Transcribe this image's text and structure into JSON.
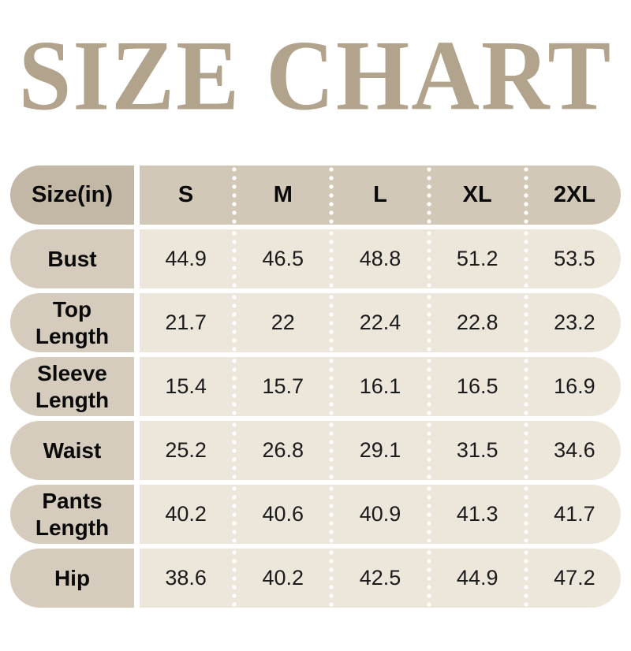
{
  "title": "SIZE CHART",
  "colors": {
    "background": "#ffffff",
    "title_text": "#b1a38c",
    "header_pill": "#c3b8a5",
    "header_strip": "#d2c8b8",
    "row_pill": "#d6ccbd",
    "row_strip": "#ece6db",
    "value_text": "#1b1b1b",
    "separator_dots": "#ffffff"
  },
  "chart_data": {
    "type": "table",
    "title": "SIZE CHART",
    "unit_label": "Size(in)",
    "columns": [
      "S",
      "M",
      "L",
      "XL",
      "2XL"
    ],
    "rows": [
      {
        "label": "Bust",
        "values": [
          "44.9",
          "46.5",
          "48.8",
          "51.2",
          "53.5"
        ]
      },
      {
        "label": "Top Length",
        "values": [
          "21.7",
          "22",
          "22.4",
          "22.8",
          "23.2"
        ]
      },
      {
        "label": "Sleeve Length",
        "values": [
          "15.4",
          "15.7",
          "16.1",
          "16.5",
          "16.9"
        ]
      },
      {
        "label": "Waist",
        "values": [
          "25.2",
          "26.8",
          "29.1",
          "31.5",
          "34.6"
        ]
      },
      {
        "label": "Pants Length",
        "values": [
          "40.2",
          "40.6",
          "40.9",
          "41.3",
          "41.7"
        ]
      },
      {
        "label": "Hip",
        "values": [
          "38.6",
          "40.2",
          "42.5",
          "44.9",
          "47.2"
        ]
      }
    ]
  }
}
